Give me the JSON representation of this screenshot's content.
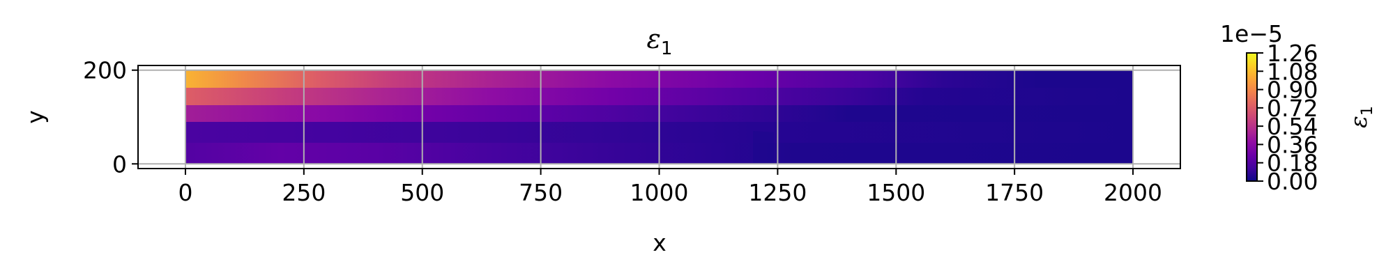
{
  "chart_data": {
    "type": "heatmap",
    "title_base": "ε",
    "title_sub": "1",
    "xlabel": "x",
    "ylabel": "y",
    "xlim": [
      -100,
      2100
    ],
    "ylim": [
      -10,
      210
    ],
    "x_ticks": [
      "0",
      "250",
      "500",
      "750",
      "1000",
      "1250",
      "1500",
      "1750",
      "2000"
    ],
    "y_ticks": [
      "0",
      "200"
    ],
    "grid": true,
    "colormap": "plasma",
    "field_extent": {
      "x": [
        0,
        2000
      ],
      "y": [
        0,
        200
      ]
    },
    "colorbar": {
      "label_base": "ε",
      "label_sub": "1",
      "scale_label": "1e−5",
      "range": [
        0.0,
        1.26
      ],
      "ticks": [
        "0.00",
        "0.18",
        "0.36",
        "0.54",
        "0.72",
        "0.90",
        "1.08",
        "1.26"
      ]
    },
    "colors": {
      "c0": "#0d0887",
      "c1": "#2c0594",
      "c2": "#4b03a1",
      "c3": "#6a00a8",
      "c4": "#8f0da4",
      "c5": "#b12a90",
      "c6": "#cc4778",
      "c7": "#e16462",
      "c8": "#f1844b",
      "c9": "#fca636",
      "c10": "#fcce25",
      "c11": "#f0f921"
    }
  }
}
